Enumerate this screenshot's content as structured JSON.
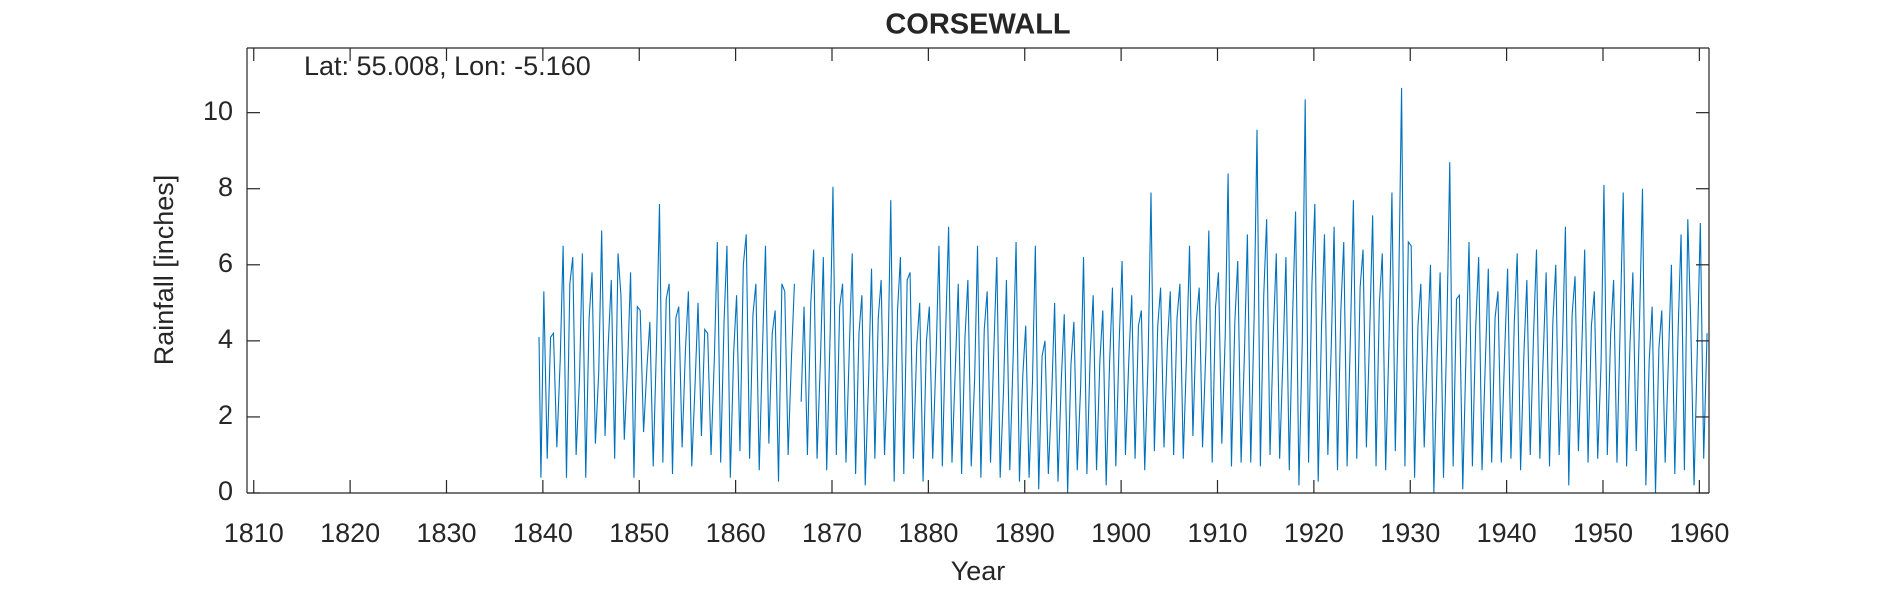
{
  "chart_data": {
    "type": "line",
    "title": "CORSEWALL",
    "annotation": "Lat: 55.008, Lon: -5.160",
    "xlabel": "Year",
    "ylabel": "Rainfall [inches]",
    "color": "#0072bd",
    "xlim": [
      1809.3,
      1961
    ],
    "ylim": [
      0,
      11.7
    ],
    "xticks": [
      1810,
      1820,
      1830,
      1840,
      1850,
      1860,
      1870,
      1880,
      1890,
      1900,
      1910,
      1920,
      1930,
      1940,
      1950,
      1960
    ],
    "yticks": [
      0,
      2,
      4,
      6,
      8,
      10
    ],
    "box": true,
    "x": [
      1839.6,
      1839.8,
      1840.1,
      1840.45,
      1840.8,
      1841.1,
      1841.45,
      1841.8,
      1842.1,
      1842.45,
      1842.8,
      1843.1,
      1843.45,
      1843.8,
      1844.1,
      1844.45,
      1844.8,
      1845.1,
      1845.45,
      1845.8,
      1846.1,
      1846.45,
      1846.8,
      1847.1,
      1847.45,
      1847.8,
      1848.1,
      1848.45,
      1848.8,
      1849.1,
      1849.45,
      1849.8,
      1850.1,
      1850.45,
      1850.8,
      1851.1,
      1851.45,
      1851.8,
      1852.1,
      1852.45,
      1852.8,
      1853.1,
      1853.45,
      1853.8,
      1854.1,
      1854.45,
      1854.8,
      1855.1,
      1855.45,
      1855.8,
      1856.1,
      1856.45,
      1856.8,
      1857.1,
      1857.45,
      1857.8,
      1858.1,
      1858.45,
      1858.8,
      1859.1,
      1859.45,
      1859.8,
      1860.1,
      1860.45,
      1860.8,
      1861.1,
      1861.45,
      1861.8,
      1862.1,
      1862.45,
      1862.8,
      1863.1,
      1863.45,
      1863.8,
      1864.1,
      1864.45,
      1864.8,
      1865.1,
      1865.45,
      1865.8,
      1866.1,
      1866.45,
      1866.8,
      1867.1,
      1867.45,
      1867.8,
      1868.1,
      1868.45,
      1868.8,
      1869.1,
      1869.45,
      1869.8,
      1870.1,
      1870.45,
      1870.8,
      1871.1,
      1871.45,
      1871.8,
      1872.1,
      1872.45,
      1872.8,
      1873.1,
      1873.45,
      1873.8,
      1874.1,
      1874.45,
      1874.8,
      1875.1,
      1875.45,
      1875.8,
      1876.1,
      1876.45,
      1876.8,
      1877.1,
      1877.45,
      1877.8,
      1878.1,
      1878.45,
      1878.8,
      1879.1,
      1879.45,
      1879.8,
      1880.1,
      1880.45,
      1880.8,
      1881.1,
      1881.45,
      1881.8,
      1882.1,
      1882.45,
      1882.8,
      1883.1,
      1883.45,
      1883.8,
      1884.1,
      1884.45,
      1884.8,
      1885.1,
      1885.45,
      1885.8,
      1886.1,
      1886.45,
      1886.8,
      1887.1,
      1887.45,
      1887.8,
      1888.1,
      1888.45,
      1888.8,
      1889.1,
      1889.45,
      1889.8,
      1890.1,
      1890.45,
      1890.8,
      1891.1,
      1891.45,
      1891.8,
      1892.1,
      1892.45,
      1892.8,
      1893.1,
      1893.45,
      1893.8,
      1894.1,
      1894.45,
      1894.8,
      1895.1,
      1895.45,
      1895.8,
      1896.1,
      1896.45,
      1896.8,
      1897.1,
      1897.45,
      1897.8,
      1898.1,
      1898.45,
      1898.8,
      1899.1,
      1899.45,
      1899.8,
      1900.1,
      1900.45,
      1900.8,
      1901.1,
      1901.45,
      1901.8,
      1902.1,
      1902.45,
      1902.8,
      1903.1,
      1903.45,
      1903.8,
      1904.1,
      1904.45,
      1904.8,
      1905.1,
      1905.45,
      1905.8,
      1906.1,
      1906.45,
      1906.8,
      1907.1,
      1907.45,
      1907.8,
      1908.1,
      1908.45,
      1908.8,
      1909.1,
      1909.45,
      1909.8,
      1910.1,
      1910.45,
      1910.8,
      1911.1,
      1911.45,
      1911.8,
      1912.1,
      1912.45,
      1912.8,
      1913.1,
      1913.45,
      1913.8,
      1914.1,
      1914.45,
      1914.8,
      1915.1,
      1915.45,
      1915.8,
      1916.1,
      1916.45,
      1916.8,
      1917.1,
      1917.45,
      1917.8,
      1918.1,
      1918.45,
      1918.8,
      1919.1,
      1919.45,
      1919.8,
      1920.1,
      1920.45,
      1920.8,
      1921.1,
      1921.45,
      1921.8,
      1922.1,
      1922.45,
      1922.8,
      1923.1,
      1923.45,
      1923.8,
      1924.1,
      1924.45,
      1924.8,
      1925.1,
      1925.45,
      1925.8,
      1926.1,
      1926.45,
      1926.8,
      1927.1,
      1927.45,
      1927.8,
      1928.1,
      1928.45,
      1928.8,
      1929.1,
      1929.45,
      1929.8,
      1930.1,
      1930.45,
      1930.8,
      1931.1,
      1931.45,
      1931.8,
      1932.1,
      1932.45,
      1932.8,
      1933.1,
      1933.45,
      1933.8,
      1934.1,
      1934.45,
      1934.8,
      1935.1,
      1935.45,
      1935.8,
      1936.1,
      1936.45,
      1936.8,
      1937.1,
      1937.45,
      1937.8,
      1938.1,
      1938.45,
      1938.8,
      1939.1,
      1939.45,
      1939.8,
      1940.1,
      1940.45,
      1940.8,
      1941.1,
      1941.45,
      1941.8,
      1942.1,
      1942.45,
      1942.8,
      1943.1,
      1943.45,
      1943.8,
      1944.1,
      1944.45,
      1944.8,
      1945.1,
      1945.45,
      1945.8,
      1946.1,
      1946.45,
      1946.8,
      1947.1,
      1947.45,
      1947.8,
      1948.1,
      1948.45,
      1948.8,
      1949.1,
      1949.45,
      1949.8,
      1950.1,
      1950.45,
      1950.8,
      1951.1,
      1951.45,
      1951.8,
      1952.1,
      1952.45,
      1952.8,
      1953.1,
      1953.45,
      1953.8,
      1954.1,
      1954.45,
      1954.8,
      1955.1,
      1955.45,
      1955.8,
      1956.1,
      1956.45,
      1956.8,
      1957.1,
      1957.45,
      1957.8,
      1958.1,
      1958.45,
      1958.8,
      1959.1,
      1959.45,
      1959.8,
      1960.1,
      1960.45,
      1960.8
    ],
    "values": [
      4.1,
      0.4,
      5.3,
      0.9,
      4.1,
      4.2,
      1.2,
      3.5,
      6.5,
      0.4,
      5.5,
      6.2,
      1.0,
      3.0,
      6.3,
      0.4,
      4.6,
      5.8,
      1.3,
      3.2,
      6.9,
      1.5,
      4.0,
      5.6,
      0.9,
      6.3,
      5.2,
      1.4,
      3.4,
      5.8,
      0.4,
      4.9,
      4.8,
      1.6,
      3.3,
      4.5,
      0.7,
      4.0,
      7.6,
      0.8,
      5.1,
      5.5,
      0.5,
      4.6,
      4.9,
      1.2,
      3.8,
      5.3,
      0.7,
      2.9,
      5.0,
      1.5,
      4.3,
      4.2,
      1.0,
      3.6,
      6.6,
      0.8,
      4.5,
      6.5,
      0.4,
      3.7,
      5.2,
      1.1,
      6.0,
      6.8,
      0.9,
      4.7,
      5.5,
      0.6,
      3.9,
      6.5,
      1.3,
      4.2,
      4.8,
      0.3,
      5.5,
      5.3,
      1.0,
      3.6,
      5.5,
      null,
      2.4,
      4.9,
      1.0,
      5.0,
      6.4,
      0.9,
      3.5,
      6.2,
      0.6,
      4.1,
      8.05,
      1.0,
      4.9,
      5.5,
      0.8,
      3.8,
      6.3,
      0.5,
      4.2,
      5.2,
      0.2,
      3.0,
      5.9,
      0.9,
      4.6,
      5.6,
      1.0,
      3.4,
      7.7,
      0.3,
      4.8,
      6.2,
      0.5,
      5.6,
      5.8,
      0.9,
      3.9,
      5.0,
      0.3,
      4.0,
      4.9,
      0.9,
      3.6,
      6.5,
      0.7,
      4.3,
      7.0,
      0.8,
      3.3,
      5.5,
      0.5,
      4.1,
      5.6,
      0.7,
      3.0,
      6.5,
      0.4,
      4.3,
      5.3,
      0.8,
      3.8,
      6.2,
      0.4,
      2.7,
      5.6,
      0.6,
      3.6,
      6.6,
      0.3,
      3.1,
      4.4,
      0.4,
      2.9,
      6.5,
      0.1,
      3.6,
      4.0,
      0.5,
      2.6,
      5.0,
      0.3,
      3.0,
      4.7,
      0.0,
      3.4,
      4.5,
      0.6,
      2.8,
      6.2,
      0.5,
      3.7,
      5.2,
      0.6,
      3.5,
      4.8,
      0.2,
      3.4,
      5.4,
      0.7,
      4.0,
      6.1,
      1.0,
      3.5,
      5.2,
      0.9,
      4.4,
      4.8,
      0.6,
      3.5,
      7.9,
      1.1,
      4.4,
      5.4,
      1.2,
      3.9,
      5.3,
      1.0,
      4.6,
      5.5,
      0.9,
      3.7,
      6.5,
      1.5,
      4.5,
      5.4,
      1.2,
      3.8,
      6.9,
      0.8,
      4.9,
      5.8,
      1.3,
      4.1,
      8.4,
      0.7,
      4.5,
      6.1,
      0.8,
      3.7,
      6.8,
      0.8,
      4.6,
      9.55,
      0.7,
      5.2,
      7.2,
      1.0,
      4.2,
      6.3,
      0.9,
      3.6,
      6.2,
      0.6,
      4.7,
      7.4,
      0.2,
      4.0,
      10.35,
      0.8,
      5.5,
      7.6,
      0.3,
      4.4,
      6.8,
      1.0,
      3.8,
      7.0,
      0.6,
      4.8,
      6.6,
      0.7,
      4.2,
      7.7,
      0.9,
      5.4,
      6.4,
      1.2,
      4.3,
      7.3,
      0.7,
      5.0,
      6.3,
      0.6,
      4.0,
      7.9,
      1.1,
      5.3,
      10.65,
      0.7,
      6.6,
      6.5,
      0.4,
      4.4,
      5.5,
      1.2,
      4.0,
      6.0,
      0.0,
      3.6,
      5.8,
      0.4,
      4.3,
      8.7,
      0.7,
      5.1,
      5.2,
      0.1,
      3.8,
      6.6,
      0.7,
      4.4,
      6.2,
      0.6,
      3.5,
      5.9,
      0.8,
      4.6,
      5.3,
      0.8,
      3.7,
      5.9,
      0.9,
      4.5,
      6.3,
      0.6,
      3.7,
      5.6,
      1.0,
      4.2,
      6.4,
      0.9,
      3.6,
      5.8,
      0.7,
      4.5,
      6.0,
      1.0,
      3.9,
      7.0,
      0.2,
      4.7,
      5.7,
      1.1,
      3.8,
      6.4,
      0.8,
      4.4,
      5.3,
      0.9,
      3.4,
      8.1,
      1.0,
      4.2,
      5.6,
      0.8,
      4.6,
      7.9,
      0.7,
      3.9,
      5.8,
      1.1,
      4.6,
      8.0,
      0.2,
      3.5,
      4.9,
      0.0,
      3.8,
      4.8,
      0.8,
      3.6,
      6.0,
      0.5,
      4.3,
      6.8,
      0.6,
      7.2,
      4.5,
      0.2,
      3.9,
      7.1,
      0.9,
      4.2
    ]
  }
}
